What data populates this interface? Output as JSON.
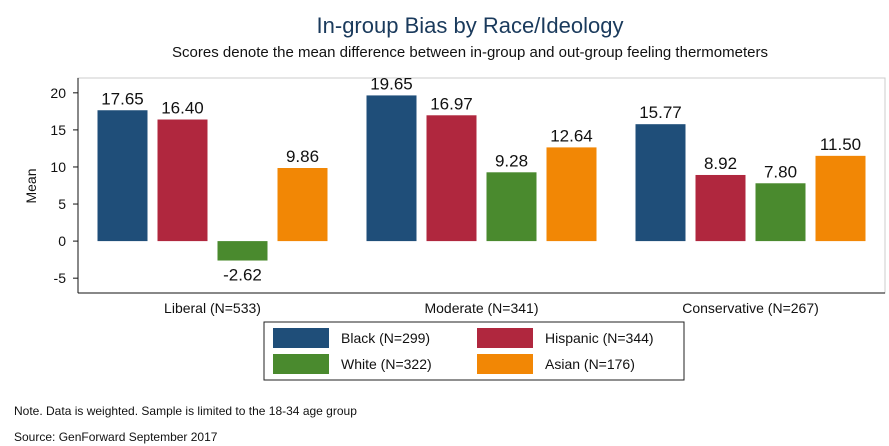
{
  "chart_data": {
    "type": "bar",
    "title": "In-group Bias by Race/Ideology",
    "subtitle": "Scores denote the mean difference between in-group and out-group feeling thermometers",
    "ylabel": "Mean",
    "xlabel": "",
    "ylim": [
      -7,
      22
    ],
    "yticks": [
      -5,
      0,
      5,
      10,
      15,
      20
    ],
    "grid": false,
    "legend_position": "bottom-center",
    "categories": [
      "Liberal (N=533)",
      "Moderate (N=341)",
      "Conservative (N=267)"
    ],
    "series": [
      {
        "name": "Black (N=299)",
        "color": "#1f4e79",
        "values": [
          17.65,
          19.65,
          15.77
        ],
        "labels": [
          "17.65",
          "19.65",
          "15.77"
        ]
      },
      {
        "name": "Hispanic (N=344)",
        "color": "#b0273e",
        "values": [
          16.4,
          16.97,
          8.92
        ],
        "labels": [
          "16.40",
          "16.97",
          "8.92"
        ]
      },
      {
        "name": "White (N=322)",
        "color": "#4a8a2e",
        "values": [
          -2.62,
          9.28,
          7.8
        ],
        "labels": [
          "-2.62",
          "9.28",
          "7.80"
        ]
      },
      {
        "name": "Asian (N=176)",
        "color": "#f28705",
        "values": [
          9.86,
          12.64,
          11.5
        ],
        "labels": [
          "9.86",
          "12.64",
          "11.50"
        ]
      }
    ]
  },
  "notes": {
    "note": "Note. Data is weighted. Sample is limited to the 18-34 age group",
    "source": "Source: GenForward September 2017"
  }
}
